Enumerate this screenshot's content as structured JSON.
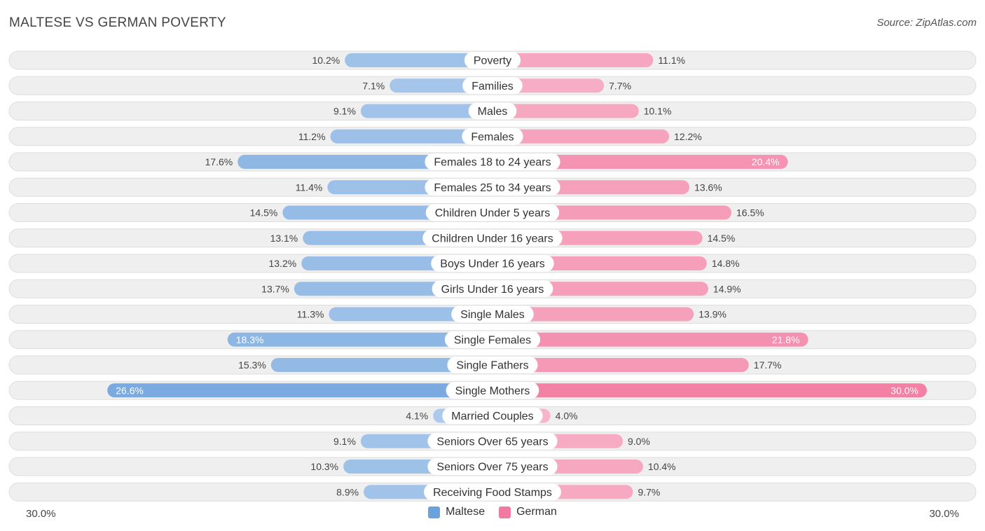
{
  "title": "MALTESE VS GERMAN POVERTY",
  "source": "Source: ZipAtlas.com",
  "colors": {
    "maltese": "#6ba1dc",
    "german": "#f27aa0",
    "row_bg": "#efefef",
    "row_border": "#dddddd"
  },
  "legend": {
    "maltese": "Maltese",
    "german": "German"
  },
  "axis": {
    "left_label": "30.0%",
    "right_label": "30.0%"
  },
  "chart_data": {
    "type": "bar",
    "orientation": "horizontal-diverging",
    "title": "MALTESE VS GERMAN POVERTY",
    "xlim": [
      -30,
      30
    ],
    "categories": [
      "Poverty",
      "Families",
      "Males",
      "Females",
      "Females 18 to 24 years",
      "Females 25 to 34 years",
      "Children Under 5 years",
      "Children Under 16 years",
      "Boys Under 16 years",
      "Girls Under 16 years",
      "Single Males",
      "Single Females",
      "Single Fathers",
      "Single Mothers",
      "Married Couples",
      "Seniors Over 65 years",
      "Seniors Over 75 years",
      "Receiving Food Stamps"
    ],
    "series": [
      {
        "name": "Maltese",
        "values": [
          10.2,
          7.1,
          9.1,
          11.2,
          17.6,
          11.4,
          14.5,
          13.1,
          13.2,
          13.7,
          11.3,
          18.3,
          15.3,
          26.6,
          4.1,
          9.1,
          10.3,
          8.9
        ],
        "labels": [
          "10.2%",
          "7.1%",
          "9.1%",
          "11.2%",
          "17.6%",
          "11.4%",
          "14.5%",
          "13.1%",
          "13.2%",
          "13.7%",
          "11.3%",
          "18.3%",
          "15.3%",
          "26.6%",
          "4.1%",
          "9.1%",
          "10.3%",
          "8.9%"
        ]
      },
      {
        "name": "German",
        "values": [
          11.1,
          7.7,
          10.1,
          12.2,
          20.4,
          13.6,
          16.5,
          14.5,
          14.8,
          14.9,
          13.9,
          21.8,
          17.7,
          30.0,
          4.0,
          9.0,
          10.4,
          9.7
        ],
        "labels": [
          "11.1%",
          "7.7%",
          "10.1%",
          "12.2%",
          "20.4%",
          "13.6%",
          "16.5%",
          "14.5%",
          "14.8%",
          "14.9%",
          "13.9%",
          "21.8%",
          "17.7%",
          "30.0%",
          "4.0%",
          "9.0%",
          "10.4%",
          "9.7%"
        ]
      }
    ],
    "legend": [
      "Maltese",
      "German"
    ]
  }
}
